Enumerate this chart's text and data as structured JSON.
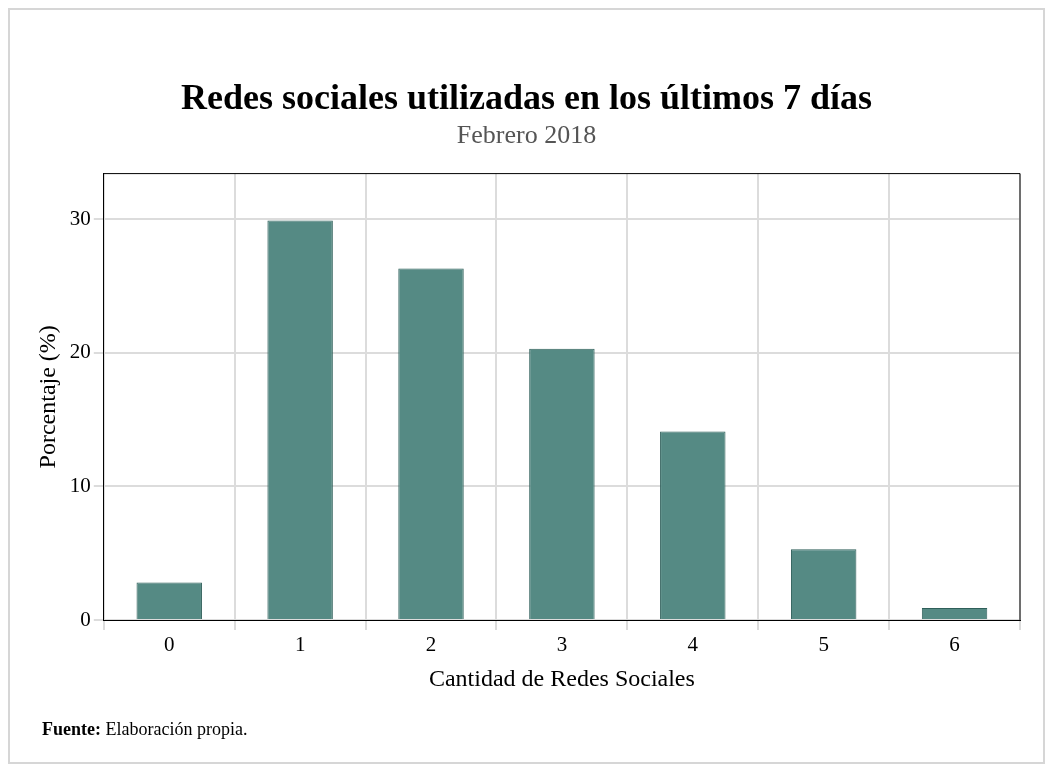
{
  "chart_data": {
    "type": "bar",
    "title": "Redes sociales utilizadas en los últimos 7 días",
    "subtitle": "Febrero 2018",
    "xlabel": "Cantidad de Redes Sociales",
    "ylabel": "Porcentaje (%)",
    "categories": [
      "0",
      "1",
      "2",
      "3",
      "4",
      "5",
      "6"
    ],
    "values": [
      2.8,
      29.9,
      26.3,
      20.3,
      14.1,
      5.3,
      0.9
    ],
    "color": "#558a84",
    "ylim": [
      0,
      33.4
    ],
    "yticks": [
      0,
      10,
      20,
      30
    ],
    "grid": true,
    "legend": false,
    "annotations": [
      "Fuente: Elaboración propia."
    ]
  }
}
